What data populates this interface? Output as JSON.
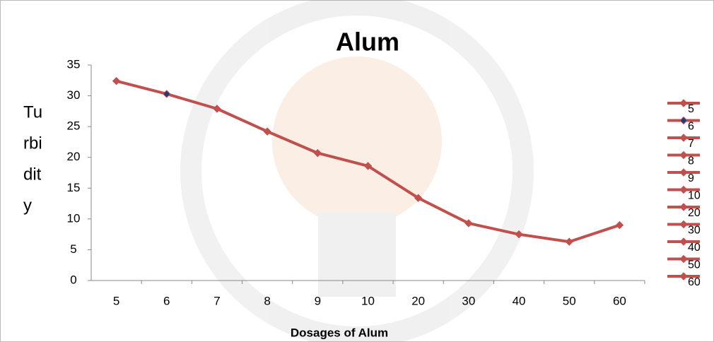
{
  "chart_data": {
    "type": "line",
    "title": "Alum",
    "xlabel": "Dosages of Alum",
    "ylabel_lines": [
      "Tu",
      "rbi",
      "dit",
      "y"
    ],
    "categories": [
      "5",
      "6",
      "7",
      "8",
      "9",
      "10",
      "20",
      "30",
      "40",
      "50",
      "60"
    ],
    "series": [
      {
        "name": "Alum",
        "color": "#c0504d",
        "values": [
          32.4,
          30.3,
          27.9,
          24.2,
          20.7,
          18.6,
          13.4,
          9.3,
          7.5,
          6.3,
          9.0
        ]
      }
    ],
    "marker_colors": [
      "#c0504d",
      "#1f3d7a",
      "#c0504d",
      "#c0504d",
      "#c0504d",
      "#c0504d",
      "#c0504d",
      "#c0504d",
      "#c0504d",
      "#c0504d",
      "#c0504d"
    ],
    "ylim": [
      0,
      35
    ],
    "yticks": [
      0,
      5,
      10,
      15,
      20,
      25,
      30,
      35
    ],
    "grid": false,
    "legend": "right"
  }
}
